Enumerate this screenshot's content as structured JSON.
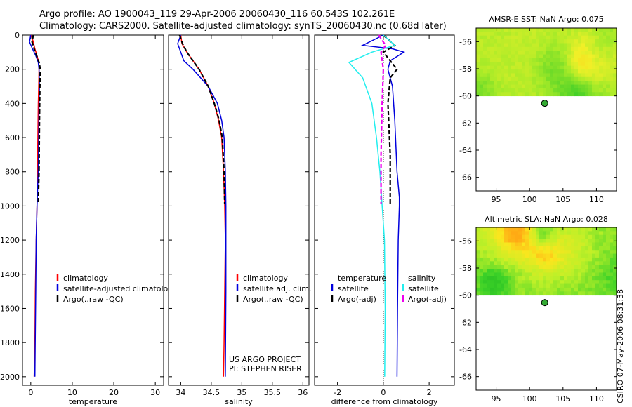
{
  "header": {
    "line1": "Argo profile: AO 1900043_119 29-Apr-2006 20060430_116 60.543S 102.261E",
    "line2": "Climatology: CARS2000. Satellite-adjusted climatology: synTS_20060430.nc (0.68d later)"
  },
  "stamp": "CSIRO 07-May-2006 08:31:38",
  "colors": {
    "red": "#ff0000",
    "blue": "#0000dd",
    "black": "#000000",
    "cyan": "#22eeee",
    "magenta": "#ee00ee",
    "dot": "#33aa33"
  },
  "chart_data": [
    {
      "type": "line",
      "xlabel": "temperature",
      "xlim": [
        -2,
        32
      ],
      "xticks": [
        0,
        10,
        20,
        30
      ],
      "ylim": [
        2050,
        0
      ],
      "yticks": [
        0,
        200,
        400,
        600,
        800,
        1000,
        1200,
        1400,
        1600,
        1800,
        2000
      ],
      "legend": [
        "climatology",
        "satellite-adjusted climatology",
        "Argo(..raw -QC)"
      ],
      "series": [
        {
          "name": "climatology",
          "color": "red",
          "dash": "",
          "x": [
            0.1,
            0.6,
            1.0,
            1.5,
            1.9,
            2.0,
            1.9,
            1.8,
            1.7,
            1.6,
            1.5,
            1.3,
            1.1,
            1.0,
            0.8
          ],
          "y": [
            0,
            40,
            80,
            120,
            160,
            200,
            300,
            400,
            600,
            800,
            1000,
            1200,
            1500,
            1800,
            2000
          ]
        },
        {
          "name": "satellite-adjusted climatology",
          "color": "blue",
          "dash": "",
          "x": [
            0.0,
            -0.3,
            0.4,
            1.2,
            1.8,
            2.0,
            2.1,
            2.0,
            1.9,
            1.8,
            1.5,
            1.3,
            1.2,
            1.0
          ],
          "y": [
            0,
            40,
            80,
            120,
            160,
            200,
            300,
            400,
            600,
            800,
            1000,
            1200,
            1500,
            2000
          ]
        },
        {
          "name": "Argo(..raw -QC)",
          "color": "black",
          "dash": "6,3",
          "x": [
            0.6,
            0.3,
            0.8,
            1.4,
            2.0,
            2.3,
            2.2,
            2.1,
            2.0,
            1.8
          ],
          "y": [
            0,
            40,
            80,
            120,
            160,
            200,
            300,
            500,
            800,
            990
          ]
        }
      ]
    },
    {
      "type": "line",
      "xlabel": "salinity",
      "xlim": [
        33.8,
        36.1
      ],
      "xticks": [
        34,
        34.5,
        35,
        35.5,
        36
      ],
      "ylim": [
        2050,
        0
      ],
      "yticks": [
        0,
        200,
        400,
        600,
        800,
        1000,
        1200,
        1400,
        1600,
        1800,
        2000
      ],
      "legend": [
        "climatology",
        "satellite adj. clim.",
        "Argo(..raw -QC)"
      ],
      "series": [
        {
          "name": "climatology",
          "color": "red",
          "dash": "",
          "x": [
            34.0,
            34.02,
            34.1,
            34.2,
            34.3,
            34.45,
            34.55,
            34.62,
            34.67,
            34.7,
            34.72,
            34.73,
            34.72,
            34.71,
            34.7
          ],
          "y": [
            0,
            50,
            100,
            150,
            200,
            300,
            400,
            500,
            600,
            800,
            1000,
            1200,
            1500,
            1800,
            2000
          ]
        },
        {
          "name": "satellite adj. clim.",
          "color": "blue",
          "dash": "",
          "x": [
            34.0,
            33.95,
            34.0,
            34.05,
            34.2,
            34.45,
            34.6,
            34.67,
            34.71,
            34.73,
            34.74,
            34.74,
            34.73
          ],
          "y": [
            0,
            50,
            100,
            150,
            200,
            300,
            400,
            500,
            600,
            800,
            1000,
            1500,
            2000
          ]
        },
        {
          "name": "Argo(..raw -QC)",
          "color": "black",
          "dash": "6,3",
          "x": [
            33.98,
            34.03,
            34.1,
            34.2,
            34.3,
            34.45,
            34.55,
            34.63,
            34.68,
            34.71,
            34.72
          ],
          "y": [
            0,
            50,
            100,
            150,
            200,
            300,
            400,
            500,
            600,
            800,
            990
          ]
        }
      ],
      "annotation": [
        "US ARGO PROJECT",
        "PI: STEPHEN RISER"
      ]
    },
    {
      "type": "line",
      "xlabel": "difference from climatology",
      "xlim": [
        -3,
        3.1
      ],
      "xticks": [
        -2,
        0,
        2
      ],
      "ylim": [
        2050,
        0
      ],
      "yticks": [
        0,
        200,
        400,
        600,
        800,
        1000,
        1200,
        1400,
        1600,
        1800,
        2000
      ],
      "legend_titles": [
        "temperature",
        "salinity"
      ],
      "legend_left": [
        "satellite",
        "Argo(-adj)"
      ],
      "legend_right": [
        "satellite",
        "Argo(-adj)"
      ],
      "series": [
        {
          "name": "temperature satellite",
          "color": "blue",
          "dash": "",
          "x": [
            0.0,
            -0.9,
            0.4,
            0.9,
            0.3,
            0.2,
            0.4,
            0.5,
            0.6,
            0.7,
            0.7,
            0.65,
            0.62,
            0.6
          ],
          "y": [
            0,
            60,
            80,
            100,
            150,
            200,
            300,
            500,
            800,
            950,
            1000,
            1200,
            1600,
            2000
          ]
        },
        {
          "name": "temperature Argo(-adj)",
          "color": "black",
          "dash": "6,3",
          "x": [
            0.0,
            0.5,
            0.0,
            0.6,
            0.3,
            0.2,
            0.3,
            0.3
          ],
          "y": [
            0,
            60,
            100,
            200,
            250,
            400,
            700,
            990
          ]
        },
        {
          "name": "salinity satellite",
          "color": "cyan",
          "dash": "",
          "x": [
            0.0,
            0.5,
            -0.5,
            -1.5,
            -0.9,
            -0.5,
            -0.3,
            -0.15,
            -0.05,
            0.05,
            0.08,
            0.06
          ],
          "y": [
            0,
            60,
            100,
            160,
            250,
            400,
            600,
            800,
            1000,
            1200,
            1600,
            2000
          ]
        },
        {
          "name": "salinity Argo(-adj)",
          "color": "magenta",
          "dash": "6,3",
          "x": [
            -0.2,
            0.1,
            -0.1,
            0.0,
            -0.05,
            -0.1,
            -0.1
          ],
          "y": [
            0,
            60,
            100,
            200,
            400,
            700,
            990
          ]
        }
      ]
    },
    {
      "type": "heatmap",
      "title": "AMSR-E SST: NaN Argo: 0.075",
      "xlim": [
        92,
        113
      ],
      "xticks": [
        95,
        100,
        105,
        110
      ],
      "ylim": [
        -67,
        -55
      ],
      "yticks": [
        -56,
        -58,
        -60,
        -62,
        -64,
        -66
      ],
      "data_extent_lat": [
        -55,
        -60
      ],
      "marker": {
        "lon": 102.261,
        "lat": -60.543
      },
      "seed": 7,
      "palette": "sst"
    },
    {
      "type": "heatmap",
      "title": "Altimetric SLA: NaN Argo: 0.028",
      "xlim": [
        92,
        113
      ],
      "xticks": [
        95,
        100,
        105,
        110
      ],
      "ylim": [
        -67,
        -55
      ],
      "yticks": [
        -56,
        -58,
        -60,
        -62,
        -64,
        -66
      ],
      "data_extent_lat": [
        -55,
        -60
      ],
      "marker": {
        "lon": 102.261,
        "lat": -60.543
      },
      "seed": 23,
      "palette": "sla"
    }
  ]
}
